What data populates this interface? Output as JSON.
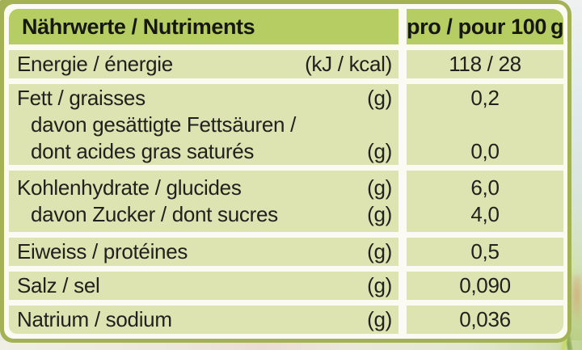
{
  "colors": {
    "frame": "#a4b155",
    "header_bg": "#b5cd62",
    "cell_bg": "#dde4b1",
    "panel": "#fbfbf3",
    "ink": "#21211e"
  },
  "table": {
    "header": {
      "col1": "Nährwerte / Nutriments",
      "col2": "pro / pour 100 g"
    },
    "rows": [
      {
        "lines": [
          {
            "label": "Energie / énergie",
            "unit": "(kJ / kcal)",
            "value": "118 / 28"
          }
        ]
      },
      {
        "lines": [
          {
            "label": "Fett / graisses",
            "unit": "(g)",
            "value": "0,2"
          },
          {
            "label": "davon gesättigte Fettsäuren /",
            "unit": "",
            "value": ""
          },
          {
            "label": "dont acides gras saturés",
            "unit": "(g)",
            "value": "0,0"
          }
        ]
      },
      {
        "lines": [
          {
            "label": "Kohlenhydrate / glucides",
            "unit": "(g)",
            "value": "6,0"
          },
          {
            "label": "davon Zucker / dont sucres",
            "unit": "(g)",
            "value": "4,0"
          }
        ]
      },
      {
        "lines": [
          {
            "label": "Eiweiss / protéines",
            "unit": "(g)",
            "value": "0,5"
          }
        ]
      },
      {
        "lines": [
          {
            "label": "Salz / sel",
            "unit": "(g)",
            "value": "0,090"
          }
        ]
      },
      {
        "lines": [
          {
            "label": "Natrium / sodium",
            "unit": "(g)",
            "value": "0,036"
          }
        ]
      }
    ]
  }
}
